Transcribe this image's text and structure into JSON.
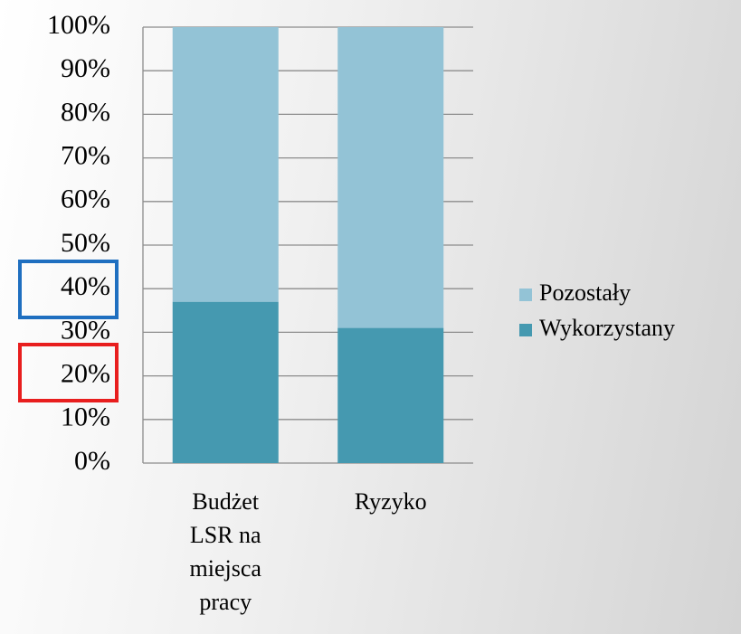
{
  "chart_data": {
    "type": "stacked_bar",
    "categories": [
      "Budżet LSR na miejsca pracy",
      "Ryzyko"
    ],
    "series": [
      {
        "name": "Wykorzystany",
        "color": "#4599b0",
        "values": [
          37,
          31
        ]
      },
      {
        "name": "Pozostały",
        "color": "#93c3d6",
        "values": [
          63,
          69
        ]
      }
    ],
    "ylim": [
      0,
      100
    ],
    "yticks": [
      {
        "value": 0,
        "label": "0%"
      },
      {
        "value": 10,
        "label": "10%"
      },
      {
        "value": 20,
        "label": "20%"
      },
      {
        "value": 30,
        "label": "30%"
      },
      {
        "value": 40,
        "label": "40%"
      },
      {
        "value": 50,
        "label": "50%"
      },
      {
        "value": 60,
        "label": "60%"
      },
      {
        "value": 70,
        "label": "70%"
      },
      {
        "value": 80,
        "label": "80%"
      },
      {
        "value": 90,
        "label": "90%"
      },
      {
        "value": 100,
        "label": "100%"
      }
    ],
    "grid": true,
    "legend": "right"
  }
}
